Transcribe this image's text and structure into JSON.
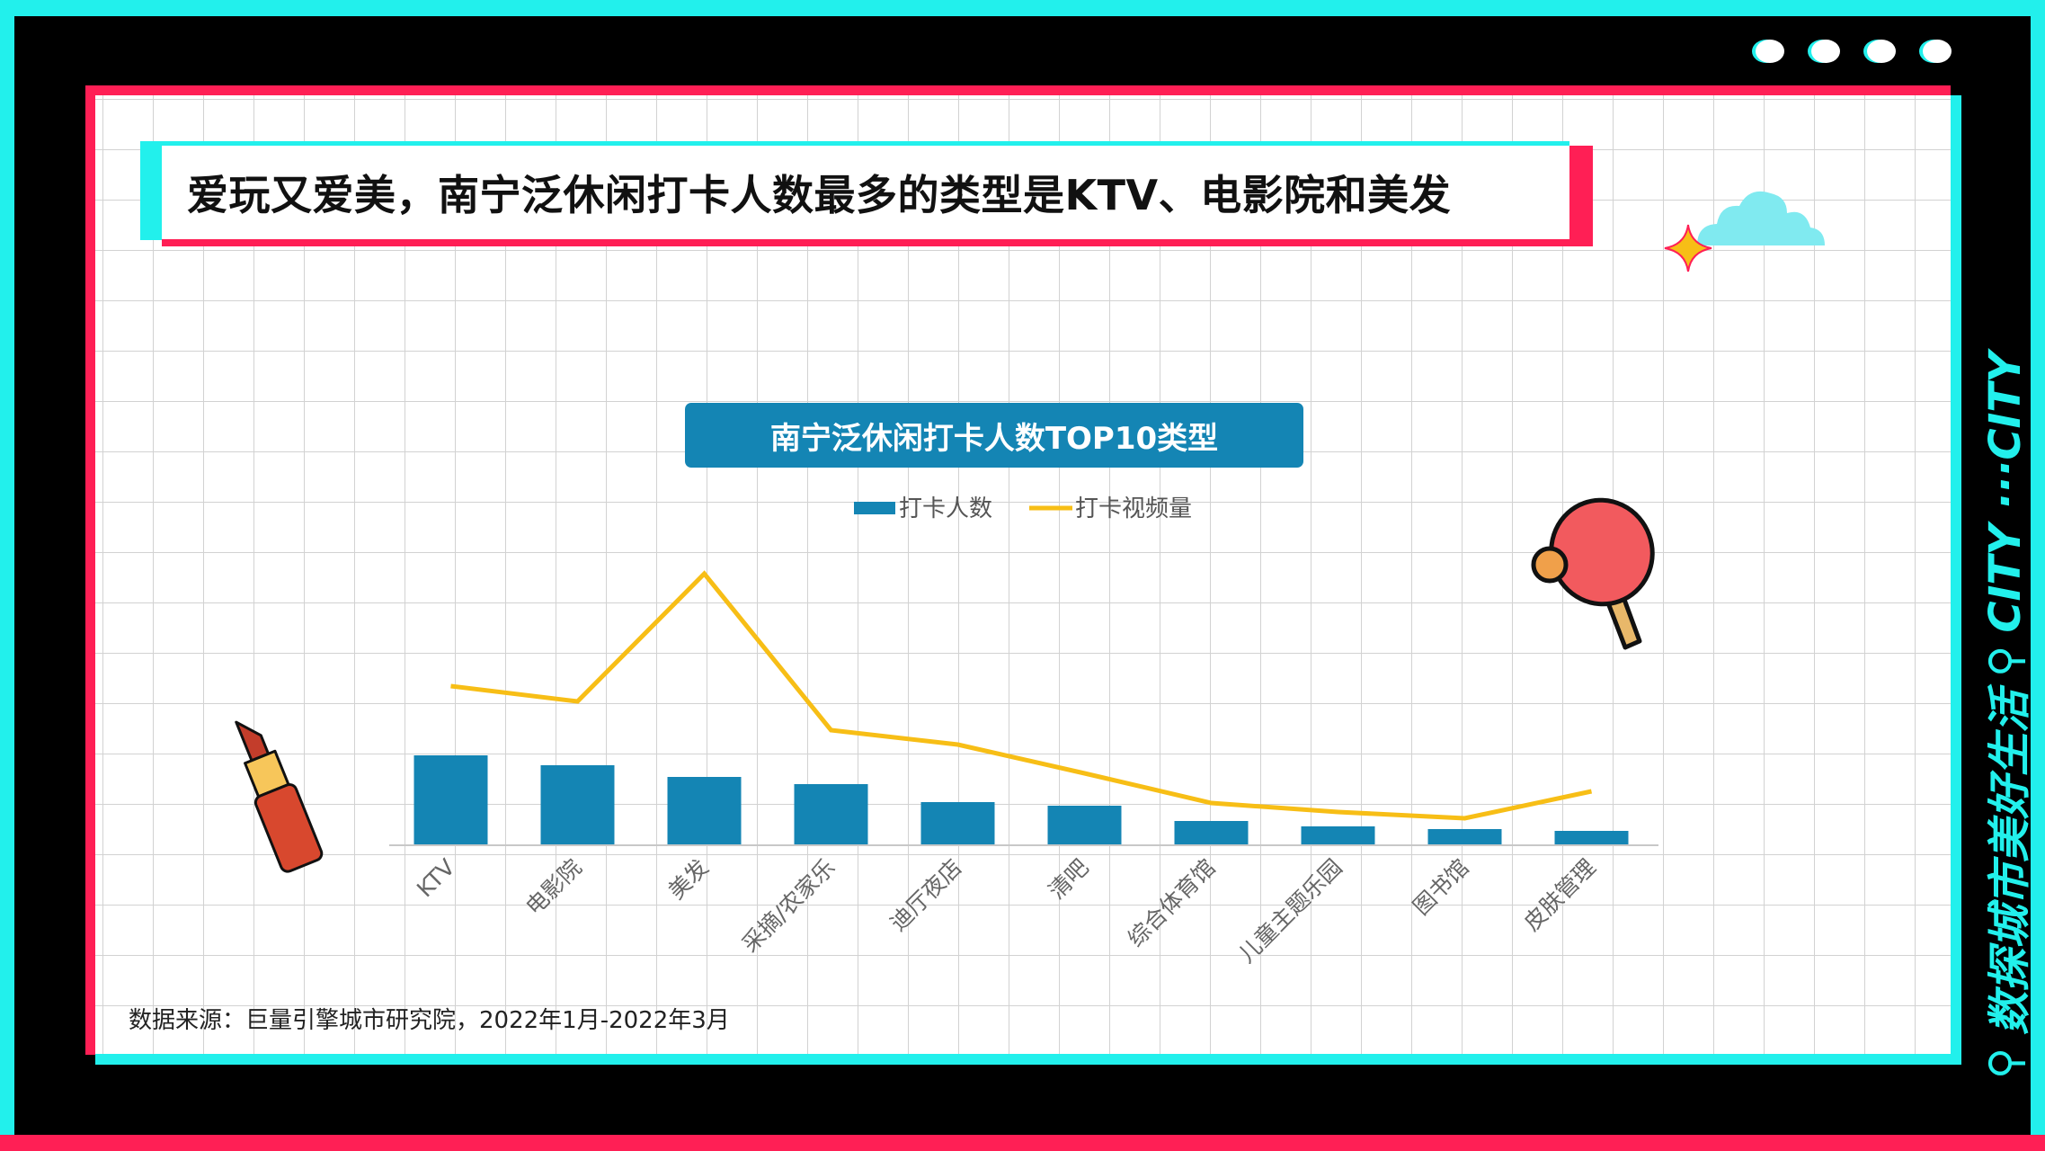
{
  "title": "爱玩又爱美，南宁泛休闲打卡人数最多的类型是KTV、电影院和美发",
  "side_label": "数探城市美好生活",
  "side_label_en": "CITY ···CITY",
  "source": "数据来源：巨量引擎城市研究院，2022年1月-2022年3月",
  "colors": {
    "cyan": "#22f0ec",
    "red": "#ff1f55",
    "bar": "#1485b4",
    "line": "#f7be16"
  },
  "icons": [
    "lipstick-icon",
    "ping-pong-paddle-icon",
    "cloud-icon",
    "sparkle-icon",
    "search-icon"
  ],
  "chart_data": {
    "type": "bar",
    "title": "南宁泛休闲打卡人数TOP10类型",
    "categories": [
      "KTV",
      "电影院",
      "美发",
      "采摘/农家乐",
      "迪厅夜店",
      "清吧",
      "综合体育馆",
      "儿童主题乐园",
      "图书馆",
      "皮肤管理"
    ],
    "series": [
      {
        "name": "打卡人数",
        "type": "bar",
        "values": [
          100,
          89,
          76,
          68,
          48,
          44,
          27,
          21,
          18,
          16
        ]
      },
      {
        "name": "打卡视频量",
        "type": "line",
        "values": [
          177,
          160,
          302,
          128,
          112,
          80,
          47,
          37,
          30,
          60
        ]
      }
    ],
    "ylim": [
      0,
      320
    ],
    "grid": false,
    "legend": "top-center"
  }
}
